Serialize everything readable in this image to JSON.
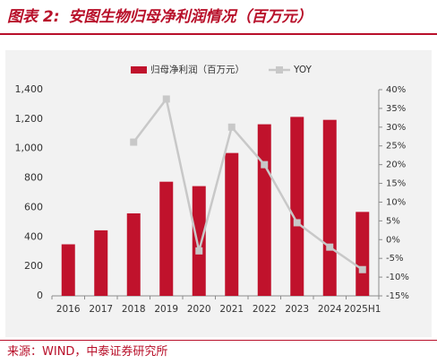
{
  "header": {
    "label": "图表 2:",
    "title": "安图生物归母净利润情况（百万元）"
  },
  "footer": {
    "source": "来源：WIND，中泰证券研究所"
  },
  "chart_data": {
    "type": "bar",
    "categories": [
      "2016",
      "2017",
      "2018",
      "2019",
      "2020",
      "2021",
      "2022",
      "2023",
      "2024",
      "2025H1"
    ],
    "series": [
      {
        "name": "归母净利润（百万元）",
        "type": "bar",
        "axis": "left",
        "color": "#c0122c",
        "values": [
          350,
          445,
          560,
          775,
          745,
          970,
          1165,
          1215,
          1195,
          570
        ]
      },
      {
        "name": "YOY",
        "type": "line",
        "axis": "right",
        "color": "#c8c8c8",
        "values": [
          null,
          null,
          0.26,
          0.375,
          -0.03,
          0.3,
          0.2,
          0.045,
          -0.02,
          -0.08
        ]
      }
    ],
    "y_left": {
      "min": 0,
      "max": 1400,
      "ticks": [
        0,
        200,
        400,
        600,
        800,
        1000,
        1200,
        1400
      ],
      "tick_labels": [
        "0",
        "200",
        "400",
        "600",
        "800",
        "1,000",
        "1,200",
        "1,400"
      ]
    },
    "y_right": {
      "min": -0.15,
      "max": 0.4,
      "ticks": [
        -0.15,
        -0.1,
        -0.05,
        0,
        0.05,
        0.1,
        0.15,
        0.2,
        0.25,
        0.3,
        0.35,
        0.4
      ],
      "tick_labels": [
        "-15%",
        "-10%",
        "-5%",
        "0%",
        "5%",
        "10%",
        "15%",
        "20%",
        "25%",
        "30%",
        "35%",
        "40%"
      ]
    },
    "legend_position": "top-center",
    "grid": false
  }
}
